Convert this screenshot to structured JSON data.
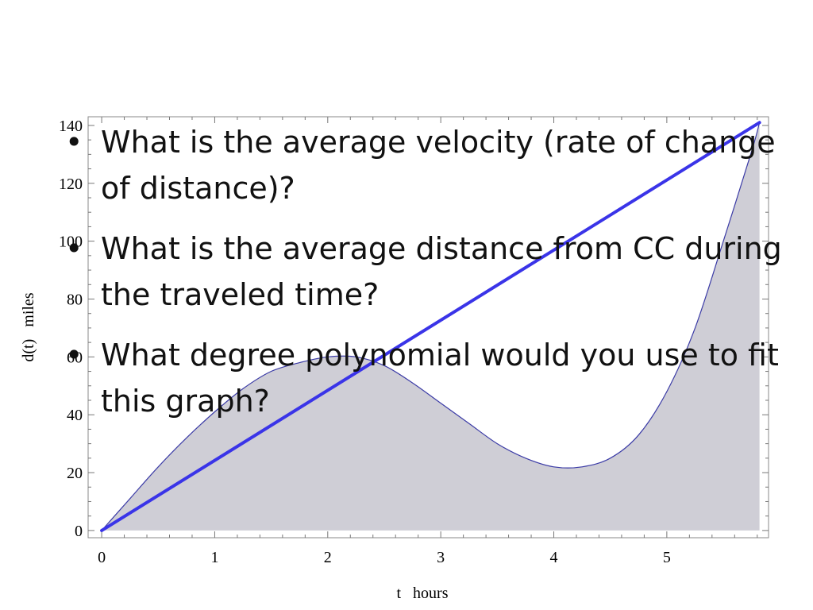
{
  "bullets": [
    {
      "symbol": "•",
      "text": "What is the average velocity (rate of change of distance)?"
    },
    {
      "symbol": "•",
      "text": "What is the average distance from CC during the traveled time?"
    },
    {
      "symbol": "•",
      "text": "What degree polynomial would you use to fit this graph?"
    }
  ],
  "chart_data": {
    "type": "area",
    "xlabel": "t   hours",
    "ylabel": "d(t)   miles",
    "xlim": [
      -0.12,
      5.9
    ],
    "ylim": [
      -2.5,
      143
    ],
    "xticks": [
      0,
      1,
      2,
      3,
      4,
      5
    ],
    "yticks": [
      0,
      20,
      40,
      60,
      80,
      100,
      120,
      140
    ],
    "x_tick_labels": [
      "0",
      "1",
      "2",
      "3",
      "4",
      "5"
    ],
    "y_tick_labels": [
      "0",
      "20",
      "40",
      "60",
      "80",
      "100",
      "120",
      "140"
    ],
    "grid": false,
    "series": [
      {
        "kind": "filled-curve",
        "x": [
          0,
          0.25,
          0.5,
          0.75,
          1.0,
          1.25,
          1.5,
          1.75,
          2.0,
          2.25,
          2.5,
          2.75,
          3.0,
          3.25,
          3.5,
          3.75,
          4.0,
          4.25,
          4.5,
          4.75,
          5.0,
          5.25,
          5.5,
          5.75,
          5.82
        ],
        "y": [
          0,
          11,
          22,
          32,
          41,
          49,
          55,
          58,
          60,
          60,
          57,
          51,
          44,
          37,
          30,
          25,
          22,
          22,
          25,
          33,
          48,
          70,
          100,
          131,
          141
        ],
        "color": "#3b3ba6",
        "fill": "#cfced6"
      },
      {
        "kind": "secant-line",
        "x": [
          0,
          5.82
        ],
        "y": [
          0,
          141
        ],
        "color": "#3a34e8"
      }
    ]
  }
}
